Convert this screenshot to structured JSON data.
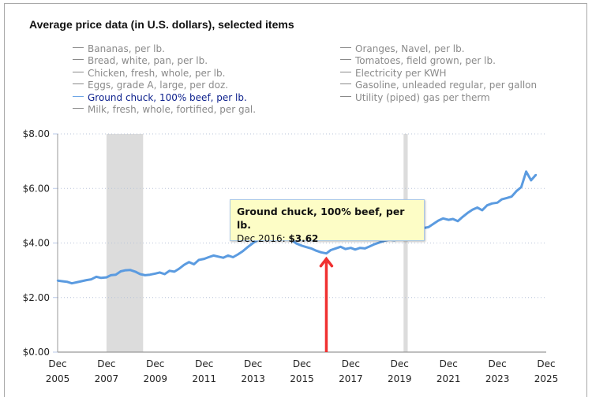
{
  "colors": {
    "series_active": "#5b9be0",
    "legend_active_text": "#0b1f8c",
    "legend_inactive_text": "#8a8a8a",
    "recession_band": "#dcdcdc",
    "grid": "#b8c4d8",
    "axis": "#999999",
    "tooltip_bg": "#fdfdc6",
    "tooltip_border": "#a9c8e6",
    "arrow": "#f03030"
  },
  "legend": {
    "left": [
      {
        "label": "Bananas, per lb.",
        "active": false
      },
      {
        "label": "Bread, white, pan, per lb.",
        "active": false
      },
      {
        "label": "Chicken, fresh, whole, per lb.",
        "active": false
      },
      {
        "label": "Eggs, grade A, large, per doz.",
        "active": false
      },
      {
        "label": "Ground chuck, 100% beef, per lb.",
        "active": true
      },
      {
        "label": "Milk, fresh, whole, fortified, per gal.",
        "active": false
      }
    ],
    "right": [
      {
        "label": "Oranges, Navel, per lb.",
        "active": false
      },
      {
        "label": "Tomatoes, field grown, per lb.",
        "active": false
      },
      {
        "label": "Electricity per KWH",
        "active": false
      },
      {
        "label": "Gasoline, unleaded regular, per gallon",
        "active": false
      },
      {
        "label": "Utility (piped) gas per therm",
        "active": false
      }
    ]
  },
  "tooltip": {
    "title": "Ground chuck, 100% beef, per lb.",
    "date": "Dec 2016:",
    "value": "$3.62"
  },
  "chart_data": {
    "type": "line",
    "title": "Average price data (in U.S. dollars), selected items",
    "xlabel": "",
    "ylabel": "",
    "ylim": [
      0,
      8
    ],
    "xlim": [
      2005.92,
      2025.92
    ],
    "y_ticks": [
      {
        "value": 0,
        "label": "$0.00"
      },
      {
        "value": 2,
        "label": "$2.00"
      },
      {
        "value": 4,
        "label": "$4.00"
      },
      {
        "value": 6,
        "label": "$6.00"
      },
      {
        "value": 8,
        "label": "$8.00"
      }
    ],
    "x_ticks": [
      {
        "value": 2005.92,
        "label": [
          "Dec",
          "2005"
        ]
      },
      {
        "value": 2007.92,
        "label": [
          "Dec",
          "2007"
        ]
      },
      {
        "value": 2009.92,
        "label": [
          "Dec",
          "2009"
        ]
      },
      {
        "value": 2011.92,
        "label": [
          "Dec",
          "2011"
        ]
      },
      {
        "value": 2013.92,
        "label": [
          "Dec",
          "2013"
        ]
      },
      {
        "value": 2015.92,
        "label": [
          "Dec",
          "2015"
        ]
      },
      {
        "value": 2017.92,
        "label": [
          "Dec",
          "2017"
        ]
      },
      {
        "value": 2019.92,
        "label": [
          "Dec",
          "2019"
        ]
      },
      {
        "value": 2021.92,
        "label": [
          "Dec",
          "2021"
        ]
      },
      {
        "value": 2023.92,
        "label": [
          "Dec",
          "2023"
        ]
      },
      {
        "value": 2025.92,
        "label": [
          "Dec",
          "2025"
        ]
      }
    ],
    "grid": true,
    "recessions": [
      {
        "start": 2007.92,
        "end": 2009.42
      },
      {
        "start": 2020.08,
        "end": 2020.25
      }
    ],
    "highlight": {
      "x": 2016.92,
      "y": 3.62,
      "label": "Dec 2016"
    },
    "series": [
      {
        "name": "Ground chuck, 100% beef, per lb.",
        "active": true,
        "x": [
          2005.92,
          2006.1,
          2006.3,
          2006.5,
          2006.7,
          2006.9,
          2007.1,
          2007.3,
          2007.5,
          2007.7,
          2007.92,
          2008.1,
          2008.3,
          2008.5,
          2008.7,
          2008.9,
          2009.1,
          2009.3,
          2009.5,
          2009.7,
          2009.92,
          2010.1,
          2010.3,
          2010.5,
          2010.7,
          2010.9,
          2011.1,
          2011.3,
          2011.5,
          2011.7,
          2011.92,
          2012.1,
          2012.3,
          2012.5,
          2012.7,
          2012.9,
          2013.1,
          2013.3,
          2013.5,
          2013.7,
          2013.92,
          2014.1,
          2014.3,
          2014.5,
          2014.7,
          2014.9,
          2015.1,
          2015.3,
          2015.5,
          2015.7,
          2015.92,
          2016.1,
          2016.3,
          2016.5,
          2016.7,
          2016.92,
          2017.1,
          2017.3,
          2017.5,
          2017.7,
          2017.92,
          2018.1,
          2018.3,
          2018.5,
          2018.7,
          2018.9,
          2019.1,
          2019.3,
          2019.5,
          2019.7,
          2019.92,
          2020.1,
          2020.3,
          2020.5,
          2020.7,
          2020.9,
          2021.1,
          2021.3,
          2021.5,
          2021.7,
          2021.92,
          2022.1,
          2022.3,
          2022.5,
          2022.7,
          2022.9,
          2023.1,
          2023.3,
          2023.5,
          2023.7,
          2023.92,
          2024.1,
          2024.3,
          2024.5,
          2024.7,
          2024.9,
          2025.1,
          2025.3,
          2025.5
        ],
        "values": [
          2.62,
          2.6,
          2.58,
          2.52,
          2.56,
          2.6,
          2.64,
          2.67,
          2.76,
          2.72,
          2.74,
          2.82,
          2.84,
          2.96,
          3.0,
          3.01,
          2.95,
          2.86,
          2.82,
          2.84,
          2.88,
          2.92,
          2.86,
          2.98,
          2.95,
          3.06,
          3.2,
          3.3,
          3.22,
          3.38,
          3.42,
          3.48,
          3.54,
          3.5,
          3.46,
          3.54,
          3.48,
          3.58,
          3.7,
          3.85,
          4.0,
          4.1,
          4.25,
          4.35,
          4.4,
          4.42,
          4.35,
          4.28,
          4.1,
          3.98,
          3.9,
          3.85,
          3.8,
          3.72,
          3.66,
          3.62,
          3.74,
          3.8,
          3.86,
          3.78,
          3.82,
          3.76,
          3.82,
          3.8,
          3.88,
          3.96,
          4.02,
          4.08,
          4.12,
          4.1,
          4.16,
          4.14,
          4.2,
          4.4,
          4.5,
          4.55,
          4.58,
          4.7,
          4.82,
          4.9,
          4.85,
          4.88,
          4.8,
          4.96,
          5.1,
          5.22,
          5.3,
          5.2,
          5.38,
          5.45,
          5.48,
          5.6,
          5.65,
          5.7,
          5.9,
          6.05,
          6.62,
          6.3,
          6.5
        ]
      }
    ]
  }
}
